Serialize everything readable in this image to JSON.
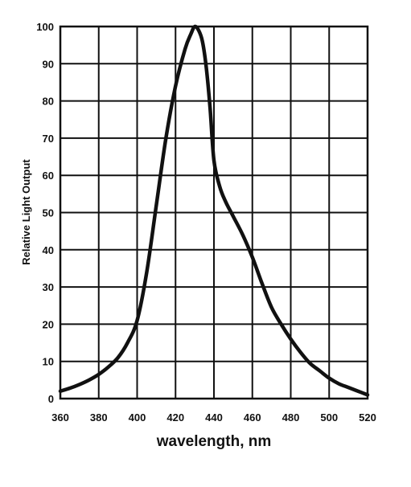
{
  "chart_data": {
    "type": "line",
    "title": "",
    "xlabel": "wavelength, nm",
    "ylabel": "Relative Light Output",
    "xlim": [
      360,
      520
    ],
    "ylim": [
      0,
      100
    ],
    "x_ticks": [
      "360",
      "380",
      "400",
      "420",
      "440",
      "460",
      "480",
      "500",
      "520"
    ],
    "y_ticks": [
      "0",
      "10",
      "20",
      "30",
      "40",
      "50",
      "60",
      "70",
      "80",
      "90",
      "100"
    ],
    "grid": true,
    "line_color": "#111111",
    "series": [
      {
        "x": [
          360,
          365,
          370,
          375,
          380,
          385,
          390,
          395,
          400,
          405,
          410,
          415,
          420,
          425,
          428,
          430,
          432,
          434,
          436,
          438,
          440,
          443,
          446,
          450,
          455,
          460,
          465,
          470,
          475,
          480,
          485,
          490,
          495,
          500,
          505,
          510,
          515,
          520
        ],
        "y": [
          2,
          2.8,
          3.8,
          5,
          6.5,
          8.5,
          11,
          15,
          21,
          34,
          52,
          70,
          84,
          94,
          98,
          100,
          99,
          96,
          89,
          78,
          64,
          57,
          53,
          49,
          44,
          38,
          31,
          24.5,
          20,
          16,
          12.5,
          9.5,
          7.5,
          5.5,
          4,
          3,
          2,
          1
        ]
      }
    ]
  }
}
